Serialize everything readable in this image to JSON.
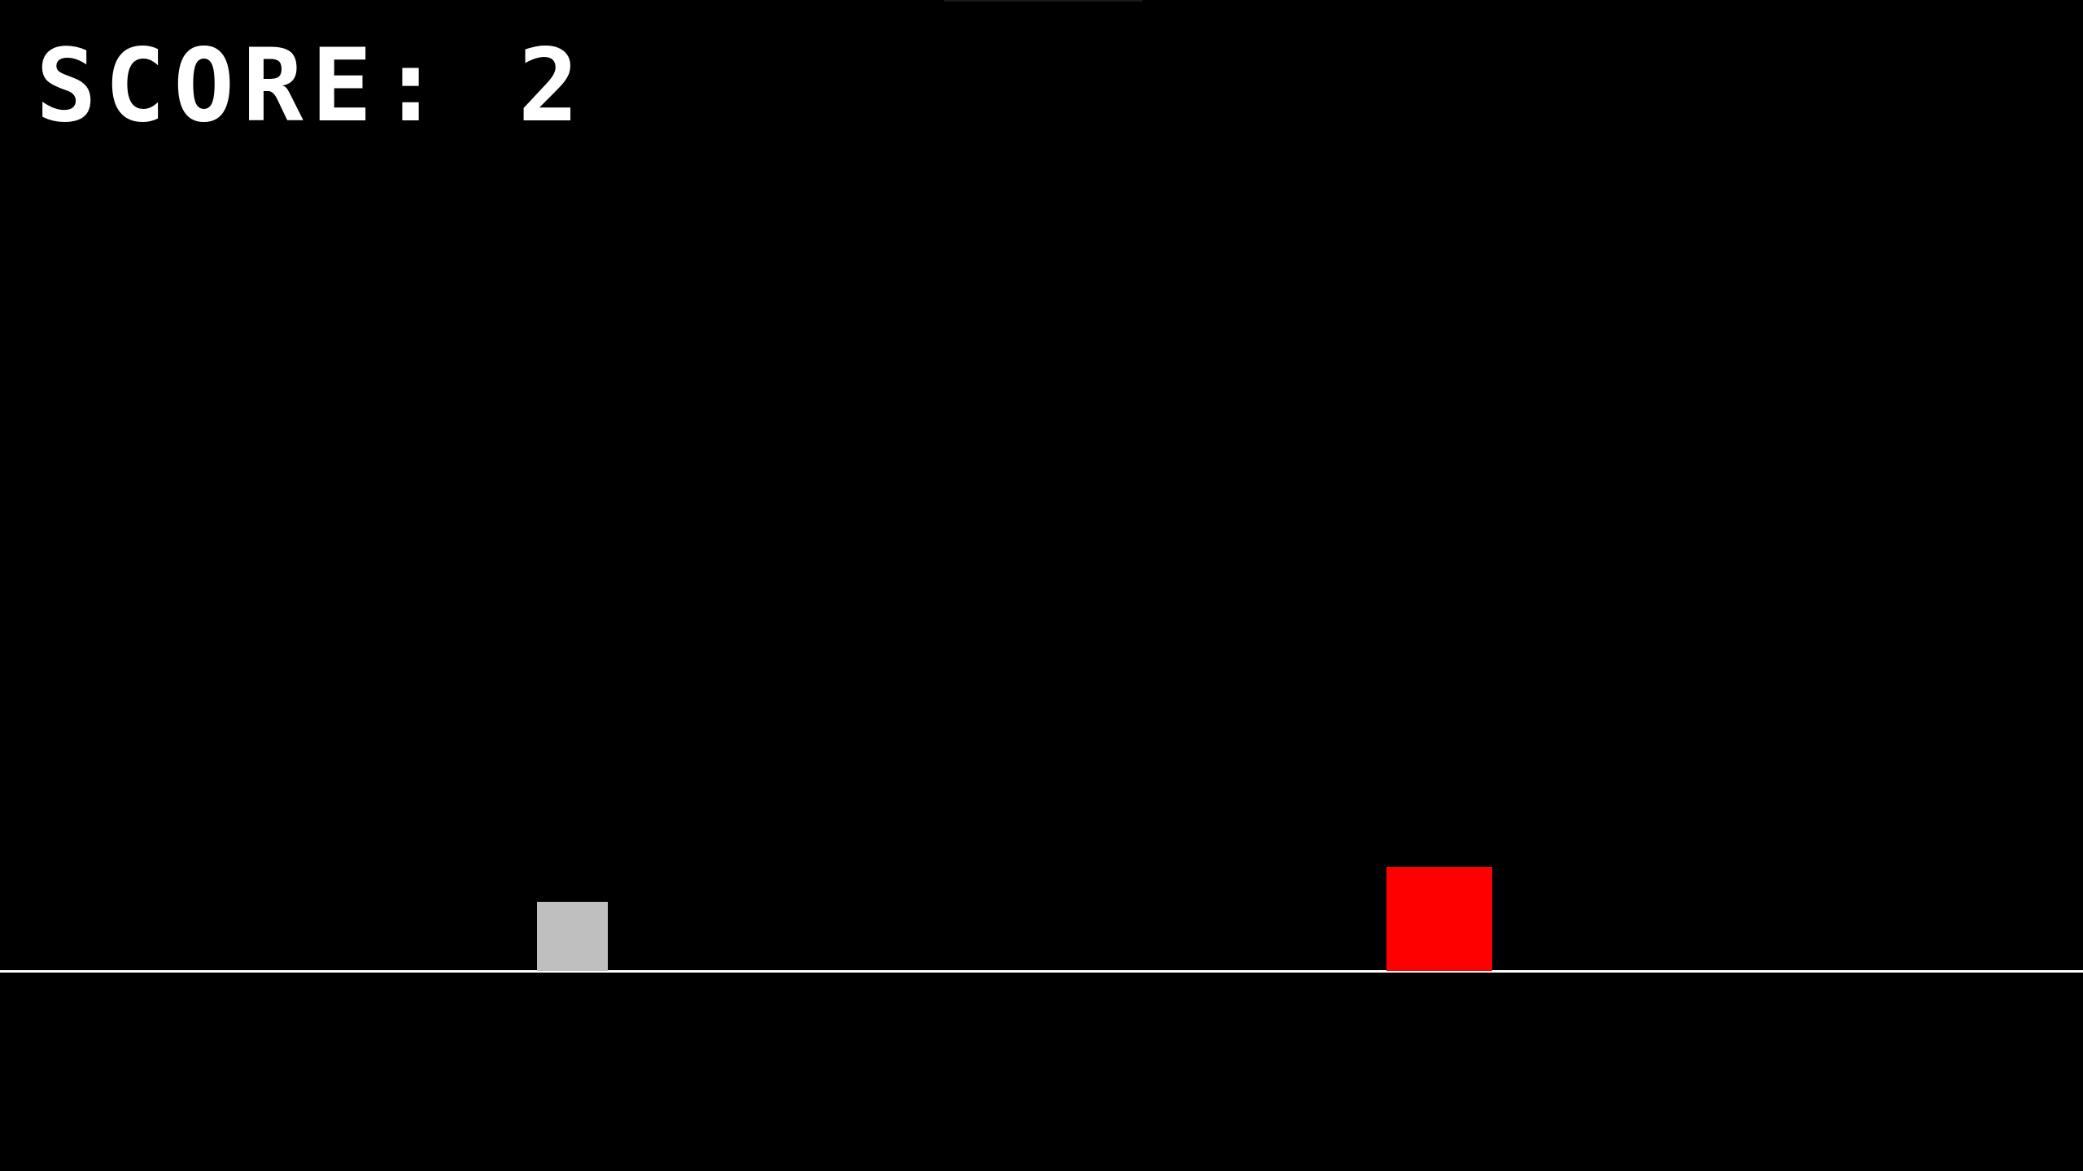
{
  "hud": {
    "score_text": "SCORE: 2",
    "score_value": 2
  },
  "colors": {
    "background": "#000000",
    "text": "#ffffff",
    "ground": "#ffffff",
    "player": "#bfbfbf",
    "obstacle": "#ff0000"
  },
  "entities": {
    "player": "player-block",
    "obstacle": "obstacle-block"
  }
}
